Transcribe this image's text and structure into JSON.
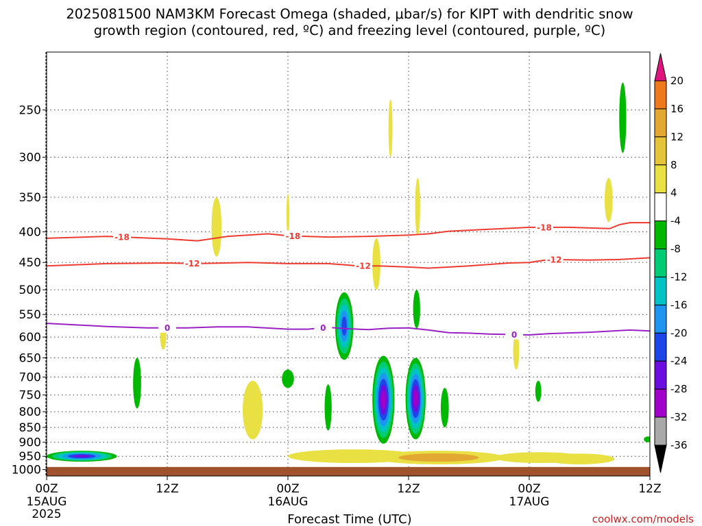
{
  "title": {
    "line1": "2025081500 NAM3KM Forecast Omega (shaded, μbar/s) for KIPT with dendritic snow",
    "line2": "growth region (contoured, red, ºC) and freezing level (contoured, purple, ºC)"
  },
  "credit": "coolwx.com/models",
  "chart_data": {
    "type": "heatmap",
    "xlabel": "Forecast Time (UTC)",
    "x_ticks": [
      {
        "hour": 0,
        "label": "00Z",
        "sub1": "15AUG",
        "sub2": "2025"
      },
      {
        "hour": 12,
        "label": "12Z",
        "sub1": "",
        "sub2": ""
      },
      {
        "hour": 24,
        "label": "00Z",
        "sub1": "16AUG",
        "sub2": ""
      },
      {
        "hour": 36,
        "label": "12Z",
        "sub1": "",
        "sub2": ""
      },
      {
        "hour": 48,
        "label": "00Z",
        "sub1": "17AUG",
        "sub2": ""
      },
      {
        "hour": 60,
        "label": "12Z",
        "sub1": "",
        "sub2": ""
      }
    ],
    "x_range_hours": [
      0,
      60
    ],
    "ylabel": "",
    "y_ticks": [
      250,
      300,
      350,
      400,
      450,
      500,
      550,
      600,
      650,
      700,
      750,
      800,
      850,
      900,
      950,
      1000
    ],
    "y_range_mb": [
      200,
      1025
    ],
    "y_scale": "log-pressure",
    "grid": "dotted",
    "ground_below_mb": 990,
    "ground_color": "#a0522d",
    "colorbar": {
      "labels": [
        "20",
        "16",
        "12",
        "8",
        "4",
        "-4",
        "-8",
        "-12",
        "-16",
        "-20",
        "-24",
        "-28",
        "-32",
        "-36"
      ],
      "colors": [
        "#ff3030",
        "#ee7a1e",
        "#e3a832",
        "#e6c43a",
        "#e9e044",
        "#ffffff",
        "#00b800",
        "#00cc76",
        "#00c4c4",
        "#1e96f0",
        "#1e46e6",
        "#6a0fe0",
        "#a000c8",
        "#a9a9a9"
      ],
      "top_arrow_color": "#e0147e",
      "bottom_arrow_color": "#000000"
    },
    "contours": [
      {
        "name": "-18",
        "color": "#ee3b30",
        "points": [
          [
            0,
            410
          ],
          [
            6,
            407
          ],
          [
            12,
            411
          ],
          [
            15,
            414
          ],
          [
            18,
            407
          ],
          [
            22,
            403
          ],
          [
            24,
            406
          ],
          [
            28,
            408
          ],
          [
            32,
            407
          ],
          [
            36,
            405
          ],
          [
            38,
            403
          ],
          [
            40,
            399
          ],
          [
            44,
            396
          ],
          [
            48,
            393
          ],
          [
            52,
            393
          ],
          [
            56,
            395
          ],
          [
            57,
            389
          ],
          [
            58,
            386
          ],
          [
            60,
            386
          ]
        ],
        "label_hours": [
          7.5,
          24.5,
          49.5
        ]
      },
      {
        "name": "-12",
        "color": "#ee3b30",
        "points": [
          [
            0,
            456
          ],
          [
            6,
            452
          ],
          [
            12,
            451
          ],
          [
            15,
            452
          ],
          [
            20,
            450
          ],
          [
            24,
            452
          ],
          [
            28,
            452
          ],
          [
            31,
            456
          ],
          [
            33,
            456
          ],
          [
            36,
            458
          ],
          [
            38,
            460
          ],
          [
            42,
            456
          ],
          [
            46,
            451
          ],
          [
            48,
            450
          ],
          [
            50,
            445
          ],
          [
            54,
            446
          ],
          [
            57,
            445
          ],
          [
            60,
            442
          ]
        ],
        "label_hours": [
          14.5,
          31.5,
          50.5
        ]
      },
      {
        "name": "0",
        "color": "#9a1fc4",
        "points": [
          [
            0,
            569
          ],
          [
            6,
            576
          ],
          [
            10,
            579
          ],
          [
            14,
            579
          ],
          [
            17,
            577
          ],
          [
            20,
            577
          ],
          [
            24,
            582
          ],
          [
            26,
            582
          ],
          [
            28,
            578
          ],
          [
            30,
            581
          ],
          [
            32,
            583
          ],
          [
            34,
            580
          ],
          [
            36,
            579
          ],
          [
            38,
            584
          ],
          [
            40,
            590
          ],
          [
            42,
            591
          ],
          [
            44,
            593
          ],
          [
            48,
            595
          ],
          [
            50,
            592
          ],
          [
            54,
            589
          ],
          [
            58,
            584
          ],
          [
            60,
            586
          ]
        ],
        "label_hours": [
          12,
          27.5,
          46.5
        ]
      }
    ],
    "blobs": [
      {
        "hour": 3.5,
        "mb": 950,
        "rx_hours": 3.5,
        "ry_mb": 20,
        "value": -24
      },
      {
        "hour": 9,
        "mb": 720,
        "rx_hours": 0.4,
        "ry_mb": 70,
        "value": -6
      },
      {
        "hour": 11.6,
        "mb": 600,
        "rx_hours": 0.3,
        "ry_mb": 30,
        "value": 6
      },
      {
        "hour": 16.9,
        "mb": 395,
        "rx_hours": 0.5,
        "ry_mb": 45,
        "value": 6
      },
      {
        "hour": 20.5,
        "mb": 800,
        "rx_hours": 1.0,
        "ry_mb": 90,
        "value": 6
      },
      {
        "hour": 24,
        "mb": 375,
        "rx_hours": 0.15,
        "ry_mb": 30,
        "value": 6
      },
      {
        "hour": 24,
        "mb": 705,
        "rx_hours": 0.6,
        "ry_mb": 25,
        "value": -6
      },
      {
        "hour": 29.6,
        "mb": 580,
        "rx_hours": 0.9,
        "ry_mb": 75,
        "value": -22
      },
      {
        "hour": 28,
        "mb": 790,
        "rx_hours": 0.35,
        "ry_mb": 70,
        "value": -6
      },
      {
        "hour": 33.5,
        "mb": 775,
        "rx_hours": 1.1,
        "ry_mb": 130,
        "value": -30
      },
      {
        "hour": 32.8,
        "mb": 455,
        "rx_hours": 0.4,
        "ry_mb": 45,
        "value": 6
      },
      {
        "hour": 34.2,
        "mb": 270,
        "rx_hours": 0.2,
        "ry_mb": 30,
        "value": 6
      },
      {
        "hour": 36.7,
        "mb": 770,
        "rx_hours": 1.0,
        "ry_mb": 120,
        "value": -30
      },
      {
        "hour": 36.9,
        "mb": 365,
        "rx_hours": 0.25,
        "ry_mb": 40,
        "value": 6
      },
      {
        "hour": 36.8,
        "mb": 540,
        "rx_hours": 0.35,
        "ry_mb": 40,
        "value": -6
      },
      {
        "hour": 39.6,
        "mb": 790,
        "rx_hours": 0.4,
        "ry_mb": 60,
        "value": -6
      },
      {
        "hour": 46.7,
        "mb": 635,
        "rx_hours": 0.3,
        "ry_mb": 45,
        "value": 6
      },
      {
        "hour": 48.9,
        "mb": 740,
        "rx_hours": 0.3,
        "ry_mb": 30,
        "value": -6
      },
      {
        "hour": 55.9,
        "mb": 355,
        "rx_hours": 0.4,
        "ry_mb": 30,
        "value": 6
      },
      {
        "hour": 57.3,
        "mb": 260,
        "rx_hours": 0.35,
        "ry_mb": 35,
        "value": -6
      },
      {
        "hour": 59.8,
        "mb": 890,
        "rx_hours": 0.4,
        "ry_mb": 10,
        "value": -6
      },
      {
        "hour": 30.5,
        "mb": 950,
        "rx_hours": 6.5,
        "ry_mb": 25,
        "value": 6
      },
      {
        "hour": 39,
        "mb": 955,
        "rx_hours": 6.5,
        "ry_mb": 25,
        "value": 8
      },
      {
        "hour": 49,
        "mb": 955,
        "rx_hours": 4.5,
        "ry_mb": 20,
        "value": 6
      },
      {
        "hour": 53,
        "mb": 960,
        "rx_hours": 3.5,
        "ry_mb": 20,
        "value": 6
      }
    ]
  }
}
